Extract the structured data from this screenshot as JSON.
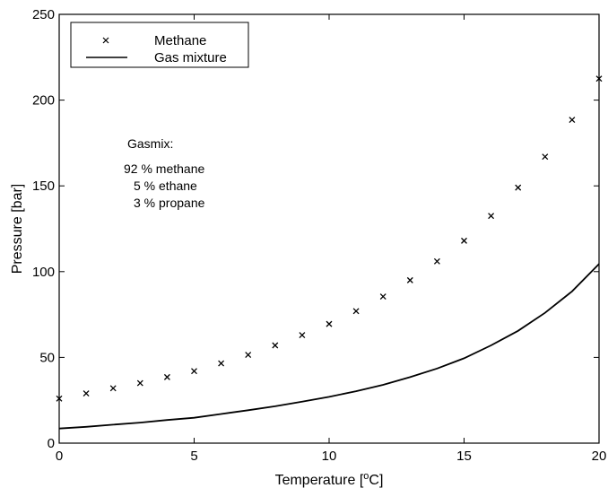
{
  "chart_data": {
    "type": "scatter",
    "xlabel": "Temperature [",
    "xlabel_sup": "o",
    "xlabel_end": "C]",
    "ylabel": "Pressure [bar]",
    "xlim": [
      0,
      20
    ],
    "ylim": [
      0,
      250
    ],
    "xticks": [
      0,
      5,
      10,
      15,
      20
    ],
    "yticks": [
      0,
      50,
      100,
      150,
      200,
      250
    ],
    "grid": false,
    "legend_position": "top-left",
    "series": [
      {
        "name": "Methane",
        "style": "x-marker",
        "color": "#000000",
        "x": [
          0,
          1,
          2,
          3,
          4,
          5,
          6,
          7,
          8,
          9,
          10,
          11,
          12,
          13,
          14,
          15,
          16,
          17,
          18,
          19,
          20
        ],
        "y": [
          26,
          29,
          32,
          35,
          38.5,
          42,
          46.5,
          51.5,
          57,
          63,
          69.5,
          77,
          85.5,
          95,
          106,
          118,
          132.5,
          149,
          167,
          188.5,
          212.5
        ]
      },
      {
        "name": "Gas mixture",
        "style": "solid-line",
        "color": "#000000",
        "x": [
          0,
          1,
          2,
          3,
          4,
          5,
          6,
          7,
          8,
          9,
          10,
          11,
          12,
          13,
          14,
          15,
          16,
          17,
          18,
          19,
          20
        ],
        "y": [
          8.5,
          9.5,
          10.8,
          12,
          13.5,
          14.8,
          17,
          19.2,
          21.5,
          24.2,
          27,
          30.3,
          34,
          38.5,
          43.5,
          49.5,
          57,
          65.5,
          76,
          88.5,
          104.5
        ]
      }
    ],
    "annotation": {
      "title": "Gasmix:",
      "lines": [
        "92 % methane",
        "5 % ethane",
        "3 % propane"
      ]
    }
  }
}
